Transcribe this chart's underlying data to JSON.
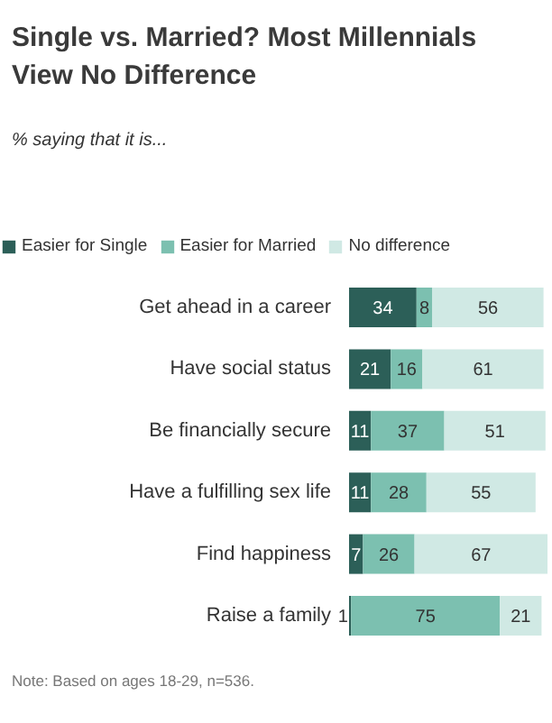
{
  "chart_data": {
    "type": "bar",
    "orientation": "horizontal",
    "stacked": true,
    "title": "Single vs. Married? Most Millennials View No Difference",
    "subtitle": "% saying that it is...",
    "categories": [
      "Get ahead in a career",
      "Have social status",
      "Be financially secure",
      "Have a fulfilling sex life",
      "Find happiness",
      "Raise a family"
    ],
    "series": [
      {
        "name": "Easier for Single",
        "color": "#2c5f58",
        "values": [
          34,
          21,
          11,
          11,
          7,
          1
        ]
      },
      {
        "name": "Easier for Married",
        "color": "#7cc0b0",
        "values": [
          8,
          16,
          37,
          28,
          26,
          75
        ]
      },
      {
        "name": "No difference",
        "color": "#d0e9e4",
        "values": [
          56,
          61,
          51,
          55,
          67,
          21
        ]
      }
    ],
    "data_labels": true,
    "legend": "top left",
    "tick_labels": "y",
    "annotations": [
      "Note: Based on ages 18-29, n=536."
    ]
  }
}
